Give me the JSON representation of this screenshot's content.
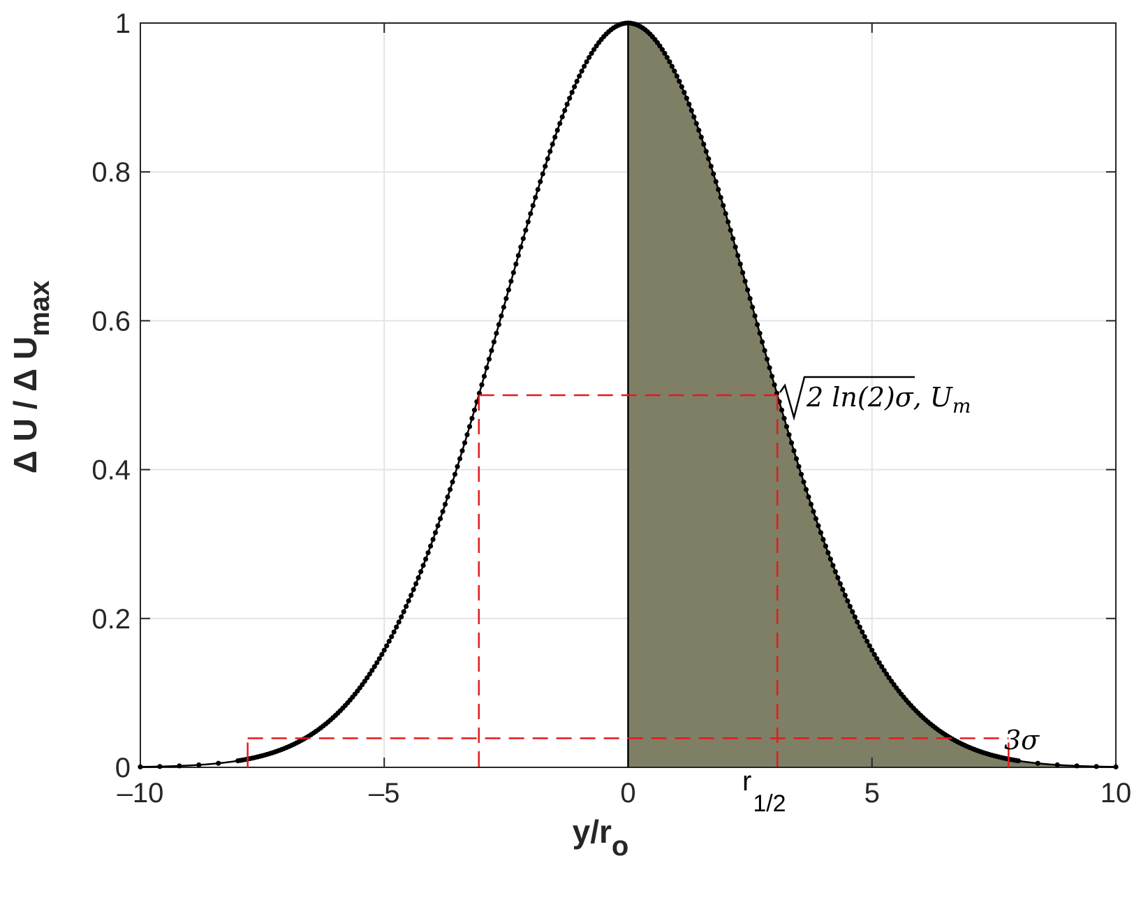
{
  "chart_data": {
    "type": "line",
    "xlabel": {
      "main": "y/r",
      "sub": "o"
    },
    "ylabel": {
      "main": "Δ U / Δ U",
      "sub": "max"
    },
    "xlim": [
      -10,
      10
    ],
    "ylim": [
      0,
      1
    ],
    "xticks": [
      -10,
      -5,
      0,
      5,
      10
    ],
    "xtick_labels": [
      "–10",
      "–5",
      "0",
      "5",
      "10"
    ],
    "yticks": [
      0,
      0.2,
      0.4,
      0.6,
      0.8,
      1
    ],
    "ytick_labels": [
      "0",
      "0.2",
      "0.4",
      "0.6",
      "0.8",
      "1"
    ],
    "grid": true,
    "series": [
      {
        "kind": "gaussian",
        "mean": 0,
        "sigma": 2.6,
        "amplitude": 1,
        "x_start": -10,
        "x_end": 10,
        "marker_step": 0.05,
        "sparse_marker_step": 0.4,
        "sparse_beyond_abs_x": 8,
        "color": "#000000"
      }
    ],
    "shaded_region": {
      "x_from": 0,
      "x_to": 10,
      "color": "#7f7f66"
    },
    "vertical_line": {
      "x": 0,
      "color": "#000000"
    },
    "reference_lines": {
      "color": "#e41a1c",
      "style": "dashed",
      "half_max": {
        "y": 0.5,
        "x_left": -3.06,
        "x_right": 3.06
      },
      "three_sigma": {
        "y": 0.039,
        "x_left": -7.8,
        "x_right": 7.8,
        "y_top": 0.0
      }
    },
    "annotations": {
      "half_max": {
        "prefix": "2 ln(2)σ, U",
        "sub": "m",
        "x": 3.06,
        "y": 0.5
      },
      "three_sigma": {
        "text": "3σ",
        "x": 7.8,
        "y": 0.039
      },
      "r_half": {
        "main": "r",
        "sub": "1/2",
        "x": 3.06
      }
    }
  }
}
